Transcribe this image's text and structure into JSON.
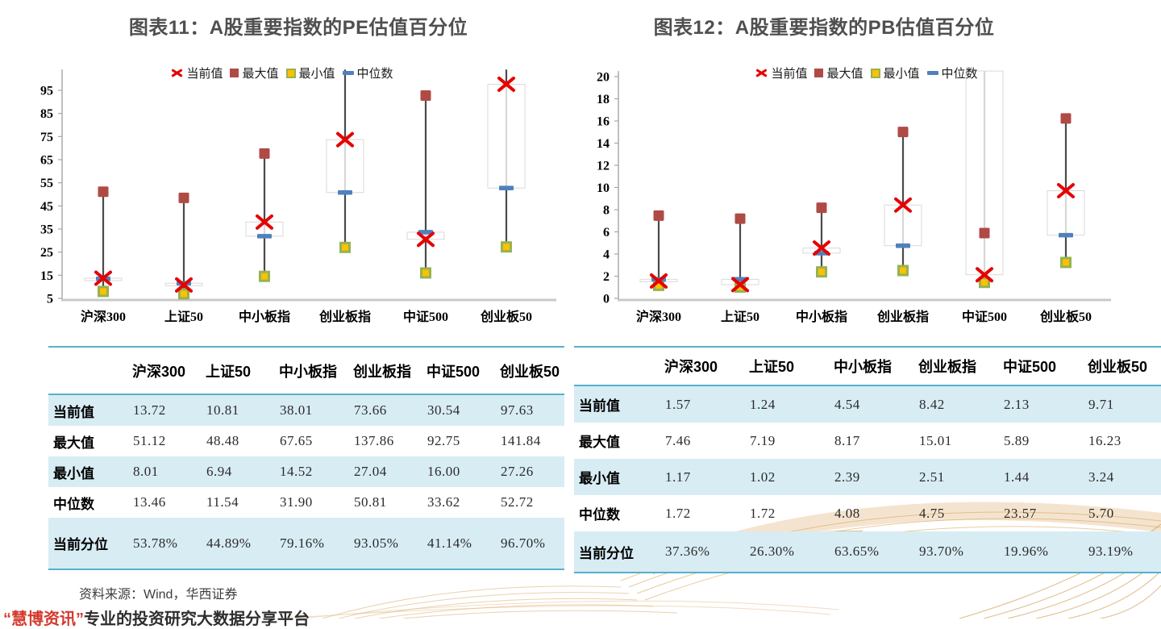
{
  "page": {
    "source_note": "资料来源：Wind，华西证券",
    "footer_brand": "“慧博资讯”",
    "footer_tagline": "专业的投资研究大数据分享平台"
  },
  "colors": {
    "accent_teal": "#56B1CB",
    "row_blue": "#D8ECF4",
    "title_gray": "#4F4F4F",
    "current_red": "#E60000",
    "max_darkred": "#B04A45",
    "min_gold": "#FFC000",
    "min_border_olive": "#94B353",
    "median_blue": "#4F81BD",
    "hl_line": "#4A4A4A",
    "axis_gray": "#A6A6A6",
    "deco_tan": "#D8A254"
  },
  "chart_data": [
    {
      "type": "stock-hlc",
      "title": "图表11：A股重要指数的PE估值百分位",
      "categories": [
        "沪深300",
        "上证50",
        "中小板指",
        "创业板指",
        "中证500",
        "创业板50"
      ],
      "series": [
        {
          "name": "当前值",
          "marker": "x-red",
          "values": [
            13.72,
            10.81,
            38.01,
            73.66,
            30.54,
            97.63
          ]
        },
        {
          "name": "最大值",
          "marker": "square-darkred",
          "values": [
            51.12,
            48.48,
            67.65,
            137.86,
            92.75,
            141.84
          ]
        },
        {
          "name": "最小值",
          "marker": "square-gold",
          "values": [
            8.01,
            6.94,
            14.52,
            27.04,
            16.0,
            27.26
          ]
        },
        {
          "name": "中位数",
          "marker": "dash-blue",
          "values": [
            13.46,
            11.54,
            31.9,
            50.81,
            33.62,
            52.72
          ]
        }
      ],
      "y_axis": {
        "min": 5,
        "max_label": 95,
        "step": 10,
        "clip_value": 104
      },
      "legend_position": "top-center",
      "grid": false
    },
    {
      "type": "stock-hlc",
      "title": "图表12：A股重要指数的PB估值百分位",
      "categories": [
        "沪深300",
        "上证50",
        "中小板指",
        "创业板指",
        "中证500",
        "创业板50"
      ],
      "series": [
        {
          "name": "当前值",
          "marker": "x-red",
          "values": [
            1.57,
            1.24,
            4.54,
            8.42,
            2.13,
            9.71
          ]
        },
        {
          "name": "最大值",
          "marker": "square-darkred",
          "values": [
            7.46,
            7.19,
            8.17,
            15.01,
            5.89,
            16.23
          ]
        },
        {
          "name": "最小值",
          "marker": "square-gold",
          "values": [
            1.17,
            1.02,
            2.39,
            2.51,
            1.44,
            3.24
          ]
        },
        {
          "name": "中位数",
          "marker": "dash-blue",
          "values": [
            1.72,
            1.72,
            4.08,
            4.75,
            23.57,
            5.7
          ]
        }
      ],
      "y_axis": {
        "min": 0,
        "max_label": 20,
        "step": 2,
        "clip_value": 20.5
      },
      "legend_position": "top-center",
      "grid": false
    }
  ],
  "tables": [
    {
      "name": "pe-table",
      "header": [
        "",
        "沪深300",
        "上证50",
        "中小板指",
        "创业板指",
        "中证500",
        "创业板50"
      ],
      "rows": [
        {
          "label": "当前值",
          "shaded": true,
          "cells": [
            "13.72",
            "10.81",
            "38.01",
            "73.66",
            "30.54",
            "97.63"
          ]
        },
        {
          "label": "最大值",
          "shaded": false,
          "cells": [
            "51.12",
            "48.48",
            "67.65",
            "137.86",
            "92.75",
            "141.84"
          ]
        },
        {
          "label": "最小值",
          "shaded": true,
          "cells": [
            "8.01",
            "6.94",
            "14.52",
            "27.04",
            "16.00",
            "27.26"
          ]
        },
        {
          "label": "中位数",
          "shaded": false,
          "cells": [
            "13.46",
            "11.54",
            "31.90",
            "50.81",
            "33.62",
            "52.72"
          ]
        },
        {
          "label": "当前分位",
          "shaded": true,
          "cells": [
            "53.78%",
            "44.89%",
            "79.16%",
            "93.05%",
            "41.14%",
            "96.70%"
          ]
        }
      ]
    },
    {
      "name": "pb-table",
      "header": [
        "",
        "沪深300",
        "上证50",
        "中小板指",
        "创业板指",
        "中证500",
        "创业板50"
      ],
      "rows": [
        {
          "label": "当前值",
          "shaded": true,
          "cells": [
            "1.57",
            "1.24",
            "4.54",
            "8.42",
            "2.13",
            "9.71"
          ]
        },
        {
          "label": "最大值",
          "shaded": false,
          "cells": [
            "7.46",
            "7.19",
            "8.17",
            "15.01",
            "5.89",
            "16.23"
          ]
        },
        {
          "label": "最小值",
          "shaded": true,
          "cells": [
            "1.17",
            "1.02",
            "2.39",
            "2.51",
            "1.44",
            "3.24"
          ]
        },
        {
          "label": "中位数",
          "shaded": false,
          "cells": [
            "1.72",
            "1.72",
            "4.08",
            "4.75",
            "23.57",
            "5.70"
          ]
        },
        {
          "label": "当前分位",
          "shaded": true,
          "cells": [
            "37.36%",
            "26.30%",
            "63.65%",
            "93.70%",
            "19.96%",
            "93.19%"
          ]
        }
      ]
    }
  ]
}
